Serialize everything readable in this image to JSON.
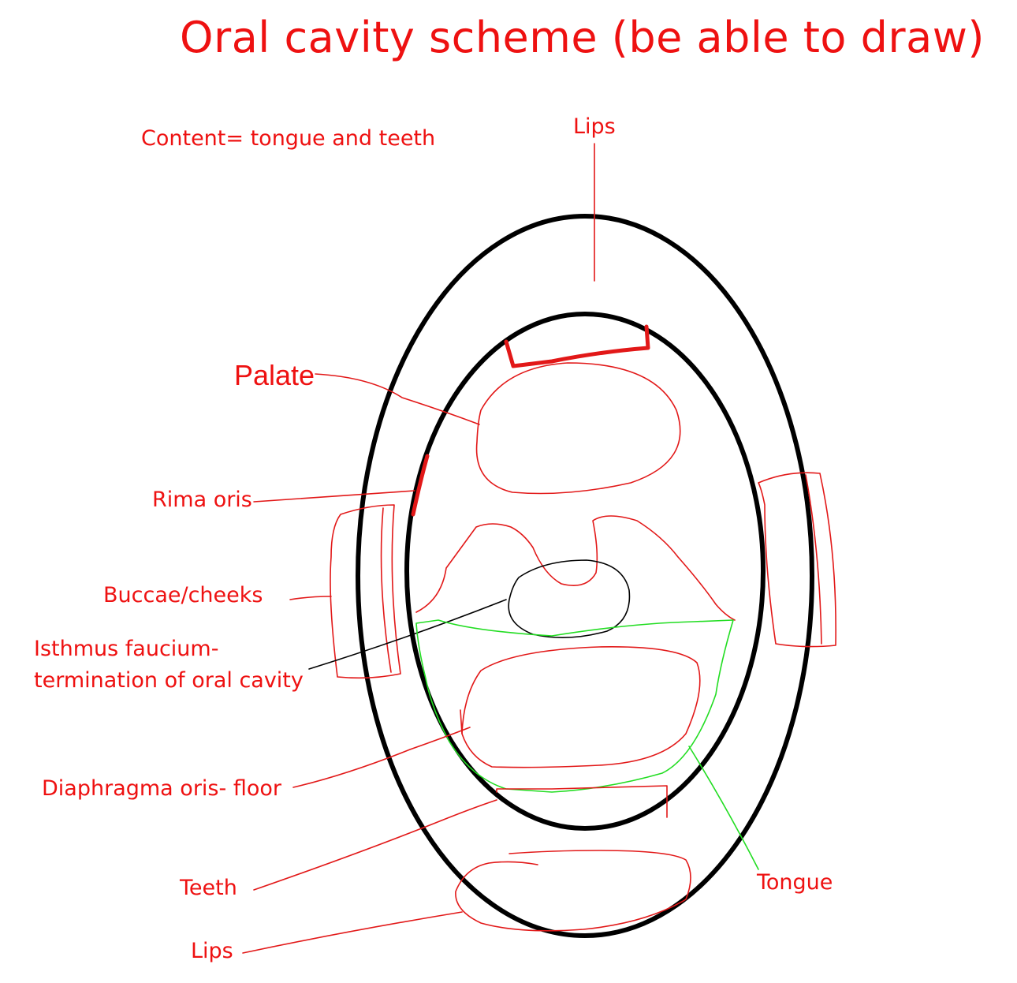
{
  "title": "Oral cavity scheme (be able to draw)",
  "labels": {
    "content": "Content= tongue and teeth",
    "lips_top": "Lips",
    "palate": "Palate",
    "rima_oris": "Rima oris",
    "buccae": "Buccae/cheeks",
    "isthmus_line1": "Isthmus faucium-",
    "isthmus_line2": "termination of oral cavity",
    "diaphragma": "Diaphragma oris- floor",
    "teeth": "Teeth",
    "tongue": "Tongue",
    "lips_bottom": "Lips"
  },
  "colors": {
    "annotation": "#e21818",
    "outline": "#000000",
    "tongue": "#22dd22"
  }
}
